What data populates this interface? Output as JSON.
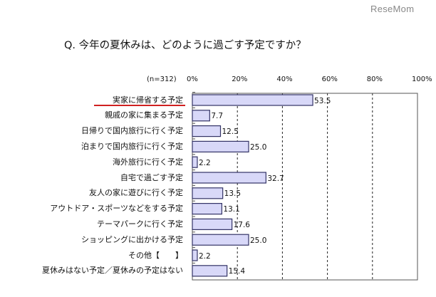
{
  "logo": "ReseMom",
  "chart_data": {
    "type": "bar",
    "orientation": "horizontal",
    "title": "Q. 今年の夏休みは、どのように過ごす予定ですか？",
    "sample_size_label": "(n=312)",
    "xlim": [
      0,
      100
    ],
    "x_ticks": [
      "0%",
      "20%",
      "40%",
      "60%",
      "80%",
      "100%"
    ],
    "grid": "vertical dashed",
    "highlighted_category": "実家に帰省する予定",
    "categories": [
      "実家に帰省する予定",
      "親戚の家に集まる予定",
      "日帰りで国内旅行に行く予定",
      "泊まりで国内旅行に行く予定",
      "海外旅行に行く予定",
      "自宅で過ごす予定",
      "友人の家に遊びに行く予定",
      "アウトドア・スポーツなどをする予定",
      "テーマパークに行く予定",
      "ショッピングに出かける予定",
      "その他【　　】",
      "夏休みはない予定／夏休みの予定はない"
    ],
    "values": [
      53.5,
      7.7,
      12.5,
      25.0,
      2.2,
      32.7,
      13.5,
      13.1,
      17.6,
      25.0,
      2.2,
      15.4
    ],
    "value_labels": [
      "53.5",
      "7.7",
      "12.5",
      "25.0",
      "2.2",
      "32.7",
      "13.5",
      "13.1",
      "17.6",
      "25.0",
      "2.2",
      "15.4"
    ],
    "bar_color": "#d8d8f8",
    "bar_border": "#333366",
    "highlight_color": "#d02020"
  }
}
